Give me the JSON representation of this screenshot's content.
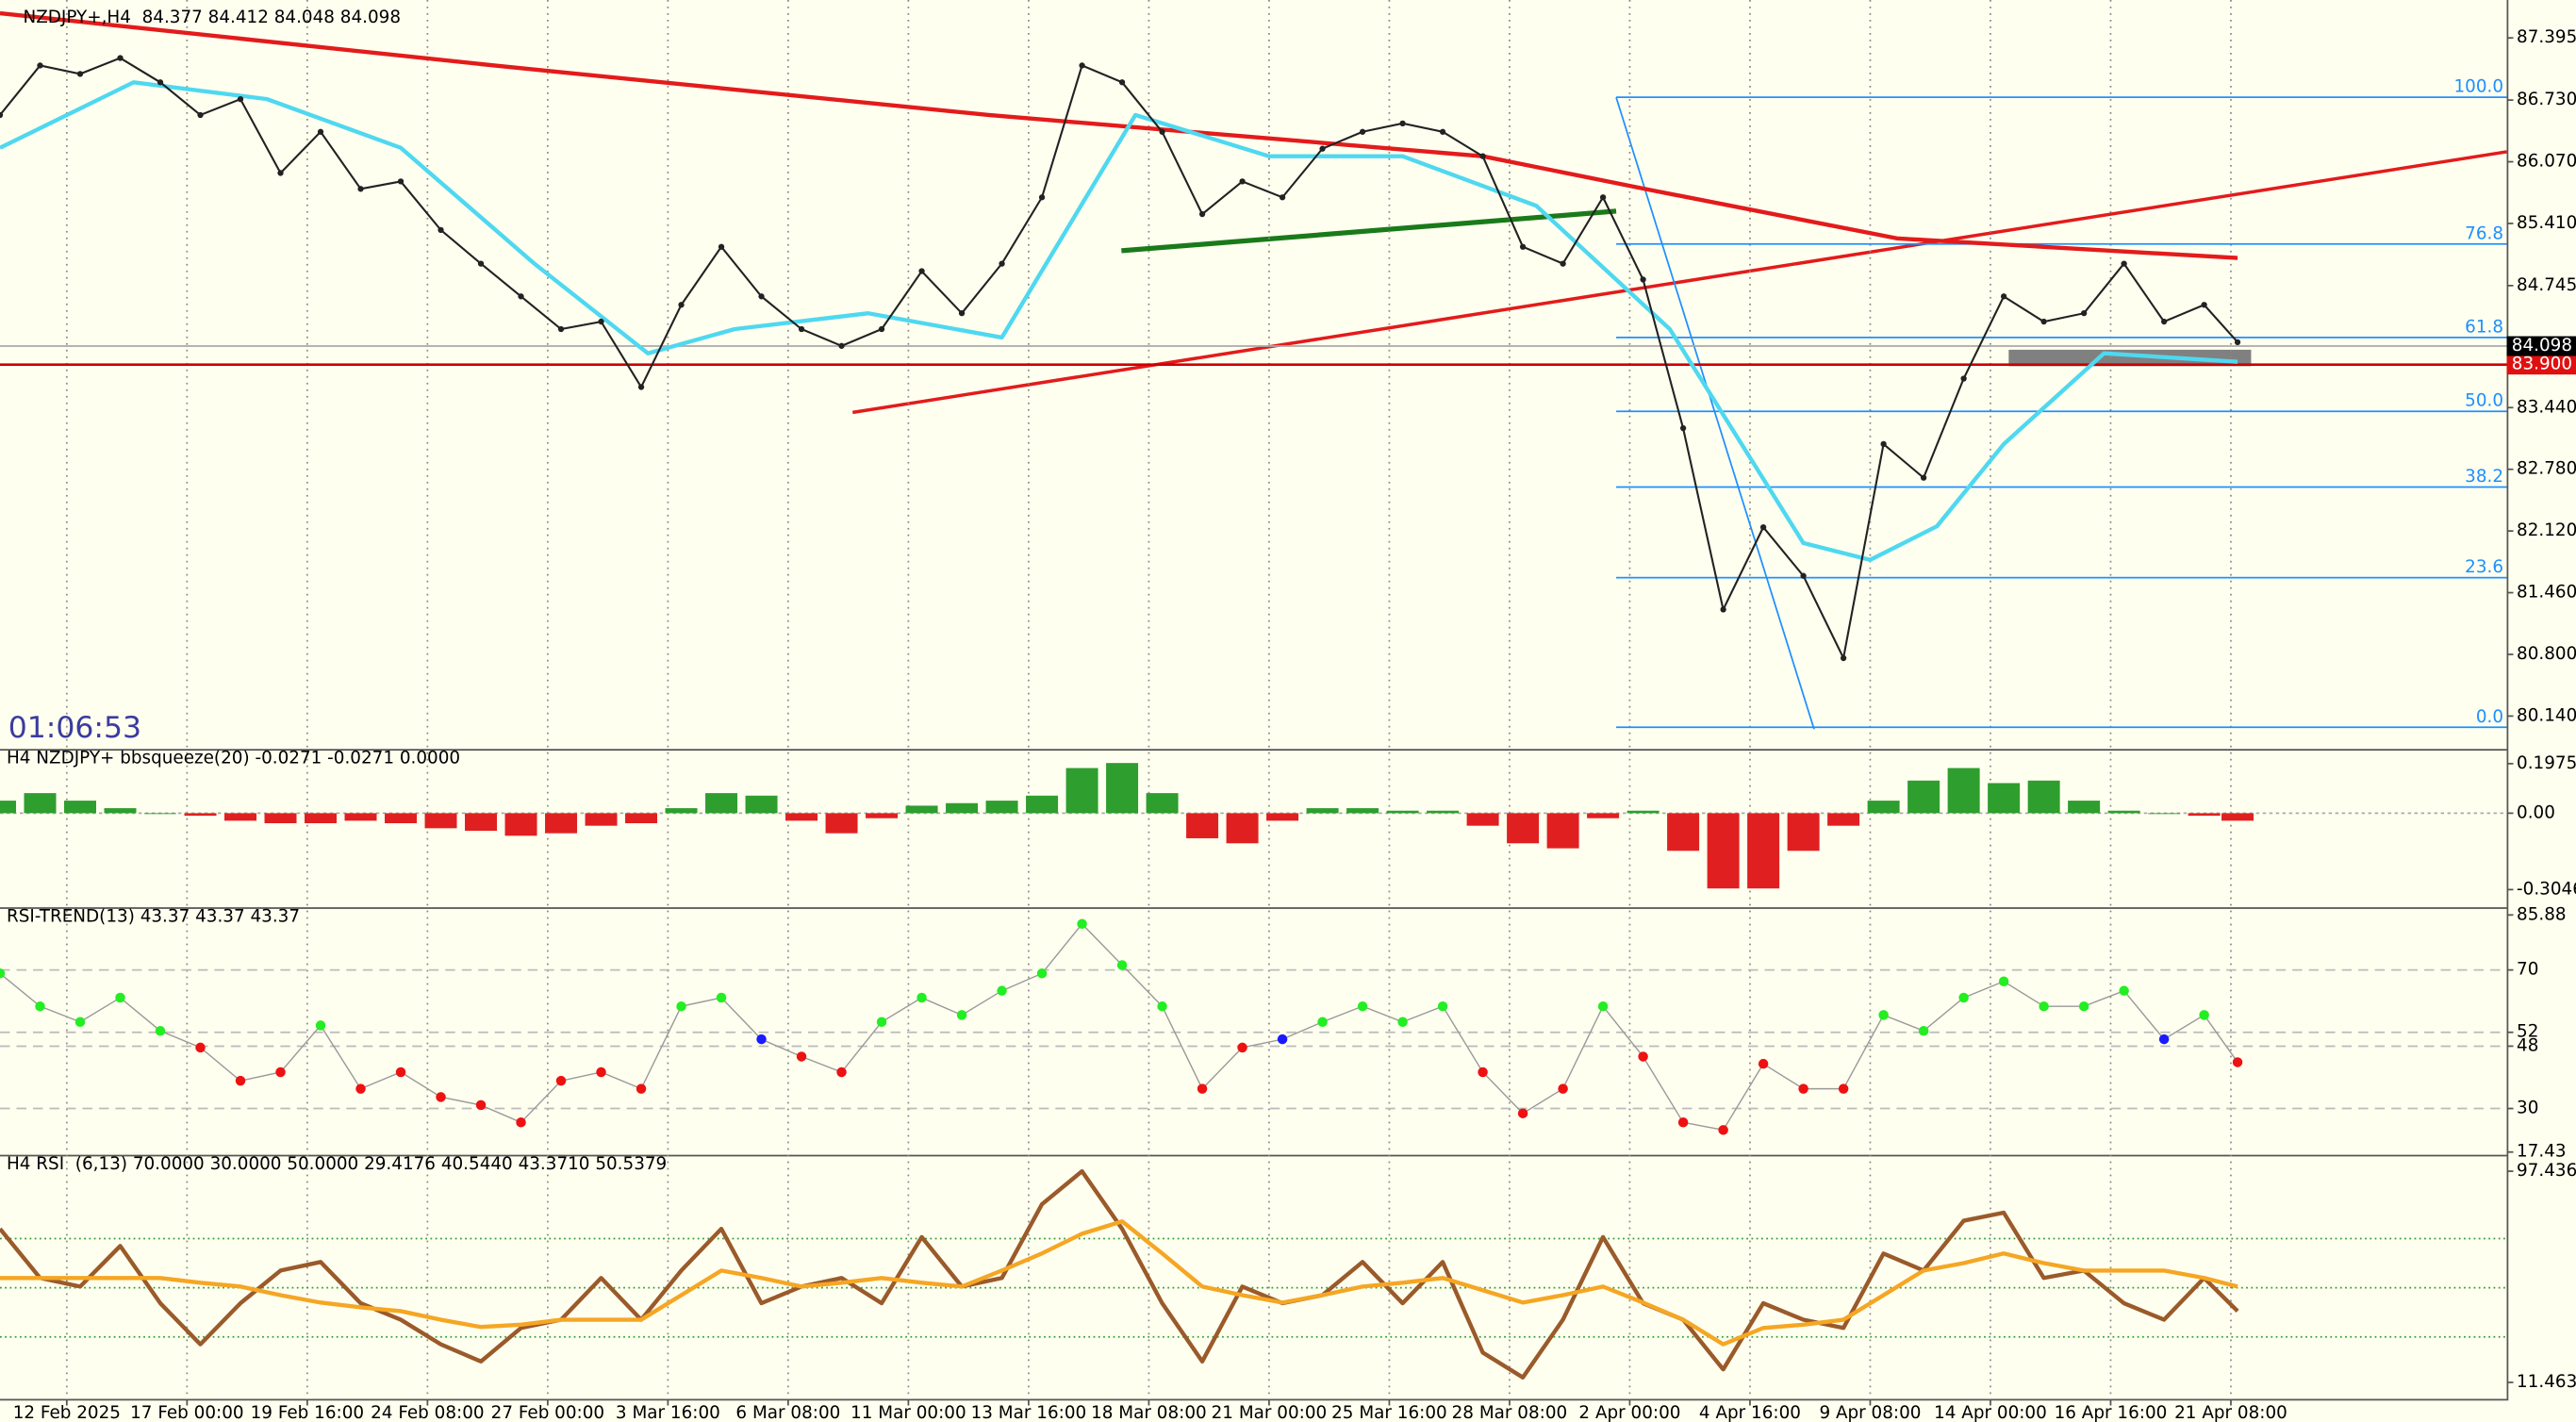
{
  "chart_data": [
    {
      "type": "line",
      "title": "NZDJPY+,H4  84.377 84.412 84.048 84.098",
      "timer": "01:06:53",
      "x": [
        0,
        6,
        12,
        18,
        24,
        30,
        36,
        42,
        48,
        54,
        60,
        66,
        72,
        78,
        84,
        90,
        96,
        102,
        108,
        114,
        120,
        126,
        132,
        138,
        144,
        150,
        156,
        162,
        168,
        174,
        180,
        186,
        192,
        198,
        204,
        210,
        216,
        222,
        228,
        234,
        240,
        246,
        252,
        258,
        264,
        270,
        276,
        282,
        288,
        294,
        300,
        306,
        312,
        318,
        324,
        330,
        335
      ],
      "values": [
        86.57,
        87.1,
        87.01,
        87.18,
        86.92,
        86.57,
        86.74,
        85.95,
        86.39,
        85.78,
        85.86,
        85.34,
        84.98,
        84.63,
        84.28,
        84.36,
        83.66,
        84.54,
        85.16,
        84.63,
        84.28,
        84.1,
        84.28,
        84.9,
        84.45,
        84.98,
        85.69,
        87.1,
        86.92,
        86.39,
        85.51,
        85.86,
        85.69,
        86.21,
        86.39,
        86.48,
        86.39,
        86.13,
        85.16,
        84.98,
        85.69,
        84.81,
        83.22,
        81.28,
        82.16,
        81.64,
        80.76,
        83.05,
        82.69,
        83.75,
        84.63,
        84.36,
        84.45,
        84.98,
        84.36,
        84.54,
        84.14
      ],
      "color": "#222222",
      "series": [
        {
          "color": "#e31b1b",
          "x": [
            0,
            74,
            148,
            222,
            247,
            284,
            335
          ],
          "values": [
            87.66,
            87.1,
            86.57,
            86.13,
            85.77,
            85.25,
            85.04
          ]
        },
        {
          "color": "#4fd8f0",
          "x": [
            0,
            20,
            40,
            60,
            80,
            97,
            110,
            130,
            150,
            170,
            190,
            210,
            230,
            250,
            270,
            280,
            290,
            300,
            315,
            335
          ],
          "values": [
            86.22,
            86.92,
            86.74,
            86.22,
            84.98,
            84.02,
            84.28,
            84.45,
            84.19,
            86.57,
            86.13,
            86.13,
            85.6,
            84.28,
            81.99,
            81.81,
            82.17,
            83.05,
            84.02,
            83.93
          ]
        }
      ],
      "xlim": [
        0,
        375.3
      ],
      "ylim": [
        79.806,
        87.677
      ],
      "yticks": [
        87.395,
        {
          "value": 86.73,
          "label": "86.730"
        },
        {
          "value": 86.07,
          "label": "86.070"
        },
        {
          "value": 85.41,
          "label": "85.410"
        },
        84.745,
        {
          "value": 83.44,
          "label": "83.440"
        },
        {
          "value": 82.78,
          "label": "82.780"
        },
        {
          "value": 82.12,
          "label": "82.120"
        },
        {
          "value": 81.46,
          "label": "81.460"
        },
        {
          "value": 80.8,
          "label": "80.800"
        },
        {
          "value": 80.14,
          "label": "80.140"
        }
      ],
      "xticks": [
        {
          "value": 10,
          "label": "12 Feb 2025"
        },
        {
          "value": 28,
          "label": "17 Feb 00:00"
        },
        {
          "value": 46,
          "label": "19 Feb 16:00"
        },
        {
          "value": 64,
          "label": "24 Feb 08:00"
        },
        {
          "value": 82,
          "label": "27 Feb 00:00"
        },
        {
          "value": 100,
          "label": "3 Mar 16:00"
        },
        {
          "value": 118,
          "label": "6 Mar 08:00"
        },
        {
          "value": 136,
          "label": "11 Mar 00:00"
        },
        {
          "value": 154,
          "label": "13 Mar 16:00"
        },
        {
          "value": 172,
          "label": "18 Mar 08:00"
        },
        {
          "value": 190,
          "label": "21 Mar 00:00"
        },
        {
          "value": 208,
          "label": "25 Mar 16:00"
        },
        {
          "value": 226,
          "label": "28 Mar 08:00"
        },
        {
          "value": 244,
          "label": "2 Apr 00:00"
        },
        {
          "value": 262,
          "label": "4 Apr 16:00"
        },
        {
          "value": 280,
          "label": "9 Apr 08:00"
        },
        {
          "value": 298,
          "label": "14 Apr 00:00"
        },
        {
          "value": 316,
          "label": "16 Apr 16:00"
        },
        {
          "value": 334,
          "label": "21 Apr 08:00"
        }
      ],
      "current_price": 84.098,
      "line_price": {
        "value": 83.9,
        "label": "83.900"
      },
      "fib": {
        "color": "#1e90ff",
        "levels": [
          {
            "label": "100.0",
            "price": 86.76
          },
          {
            "label": "76.8",
            "price": 85.19
          },
          {
            "label": "61.8",
            "price": 84.19
          },
          {
            "label": "50.0",
            "price": 83.4
          },
          {
            "label": "38.2",
            "price": 82.59
          },
          {
            "label": "23.6",
            "price": 81.62
          },
          {
            "label": "0.0",
            "price": 80.02
          }
        ]
      }
    },
    {
      "type": "bar",
      "title": "H4 NZDJPY+ bbsqueeze(20) -0.0271 -0.0271 0.0000",
      "x": [
        0,
        6,
        12,
        18,
        24,
        30,
        36,
        42,
        48,
        54,
        60,
        66,
        72,
        78,
        84,
        90,
        96,
        102,
        108,
        114,
        120,
        126,
        132,
        138,
        144,
        150,
        156,
        162,
        168,
        174,
        180,
        186,
        192,
        198,
        204,
        210,
        216,
        222,
        228,
        234,
        240,
        246,
        252,
        258,
        264,
        270,
        276,
        282,
        288,
        294,
        300,
        306,
        312,
        318,
        324,
        330,
        335
      ],
      "values": [
        0.05,
        0.08,
        0.05,
        0.02,
        0.0,
        -0.01,
        -0.03,
        -0.04,
        -0.04,
        -0.03,
        -0.04,
        -0.06,
        -0.07,
        -0.09,
        -0.08,
        -0.05,
        -0.04,
        0.02,
        0.08,
        0.07,
        -0.03,
        -0.08,
        -0.02,
        0.03,
        0.04,
        0.05,
        0.07,
        0.18,
        0.2,
        0.08,
        -0.1,
        -0.12,
        -0.03,
        0.02,
        0.02,
        0.01,
        0.01,
        -0.05,
        -0.12,
        -0.14,
        -0.02,
        0.01,
        -0.15,
        -0.3,
        -0.3,
        -0.15,
        -0.05,
        0.05,
        0.13,
        0.18,
        0.12,
        0.13,
        0.05,
        0.01,
        0.0,
        -0.01,
        -0.03
      ],
      "colors": {
        "positive": "#2e9e2e",
        "negative": "#e02020"
      },
      "ylim": [
        -0.362,
        0.243
      ],
      "yticks": [
        0.1975,
        {
          "value": 0,
          "label": "0.00"
        },
        -0.3046
      ]
    },
    {
      "type": "scatter",
      "title": "RSI-TREND(13) 43.37 43.37 43.37",
      "x": [
        0,
        6,
        12,
        18,
        24,
        30,
        36,
        42,
        48,
        54,
        60,
        66,
        72,
        78,
        84,
        90,
        96,
        102,
        108,
        114,
        120,
        126,
        132,
        138,
        144,
        150,
        156,
        162,
        168,
        174,
        180,
        186,
        192,
        198,
        204,
        210,
        216,
        222,
        228,
        234,
        240,
        246,
        252,
        258,
        264,
        270,
        276,
        282,
        288,
        294,
        300,
        306,
        312,
        318,
        324,
        330,
        335
      ],
      "values": [
        69,
        59.5,
        55,
        62,
        52.4,
        47.6,
        38,
        40.5,
        54,
        35.7,
        40.5,
        33.3,
        31,
        26,
        38,
        40.5,
        35.7,
        59.5,
        62,
        50,
        45,
        40.5,
        55,
        62,
        57,
        64,
        69,
        83.3,
        71.4,
        59.5,
        35.7,
        47.6,
        50,
        55,
        59.5,
        55,
        59.5,
        40.5,
        28.6,
        35.7,
        59.5,
        45,
        26,
        23.8,
        42.9,
        35.7,
        35.7,
        57,
        52.4,
        62,
        66.7,
        59.5,
        59.5,
        64,
        50,
        57,
        43.37
      ],
      "colors": {
        "up": "#22ee22",
        "mid": "#1a1aff",
        "down": "#ee1111"
      },
      "ylim": [
        17.6,
        87.14
      ],
      "yticks": [
        85.88,
        70,
        52,
        48,
        30,
        17.43
      ]
    },
    {
      "type": "line",
      "title": "H4 RSI  (6,13) 70.0000 30.0000 50.0000 29.4176 40.5440 43.3710 50.5379",
      "x": [
        0,
        6,
        12,
        18,
        24,
        30,
        36,
        42,
        48,
        54,
        60,
        66,
        72,
        78,
        84,
        90,
        96,
        102,
        108,
        114,
        120,
        126,
        132,
        138,
        144,
        150,
        156,
        162,
        168,
        174,
        180,
        186,
        192,
        198,
        204,
        210,
        216,
        222,
        228,
        234,
        240,
        246,
        252,
        258,
        264,
        270,
        276,
        282,
        288,
        294,
        300,
        306,
        312,
        318,
        324,
        330,
        335
      ],
      "series": [
        {
          "color": "#9a5a2a",
          "values": [
            74,
            54,
            50.5,
            67,
            43.7,
            27,
            43.7,
            57,
            60.5,
            43.7,
            37,
            27,
            20,
            33.6,
            37,
            54,
            37,
            57,
            74,
            43.7,
            50.5,
            54,
            43.7,
            70.6,
            50.5,
            54,
            84,
            97.4,
            74,
            43.7,
            20,
            50.5,
            43.7,
            47,
            60.5,
            43.7,
            60.5,
            23.6,
            13.5,
            37,
            70.6,
            43.7,
            37,
            16.8,
            43.7,
            37,
            33.6,
            63.9,
            57,
            77.3,
            80.6,
            54,
            57,
            43.7,
            37,
            54,
            40.5
          ]
        },
        {
          "color": "#f5a623",
          "values": [
            54,
            54,
            54,
            54,
            54,
            52,
            50.5,
            47,
            44,
            42,
            40.5,
            37,
            34,
            35,
            37,
            37,
            37,
            47,
            57,
            54,
            50.5,
            52,
            54,
            52,
            50.5,
            57,
            64,
            72,
            77,
            64,
            50.5,
            47,
            44,
            47,
            50.5,
            52,
            54,
            49,
            44,
            47,
            50.5,
            44,
            37,
            27,
            33.6,
            35,
            37,
            47,
            57,
            60,
            64,
            60,
            57,
            57,
            57,
            54,
            50.5
          ]
        }
      ],
      "levels": [
        70,
        30,
        50
      ],
      "ylim": [
        4.75,
        102.8
      ],
      "yticks": [
        97.4362,
        11.4633
      ]
    }
  ]
}
